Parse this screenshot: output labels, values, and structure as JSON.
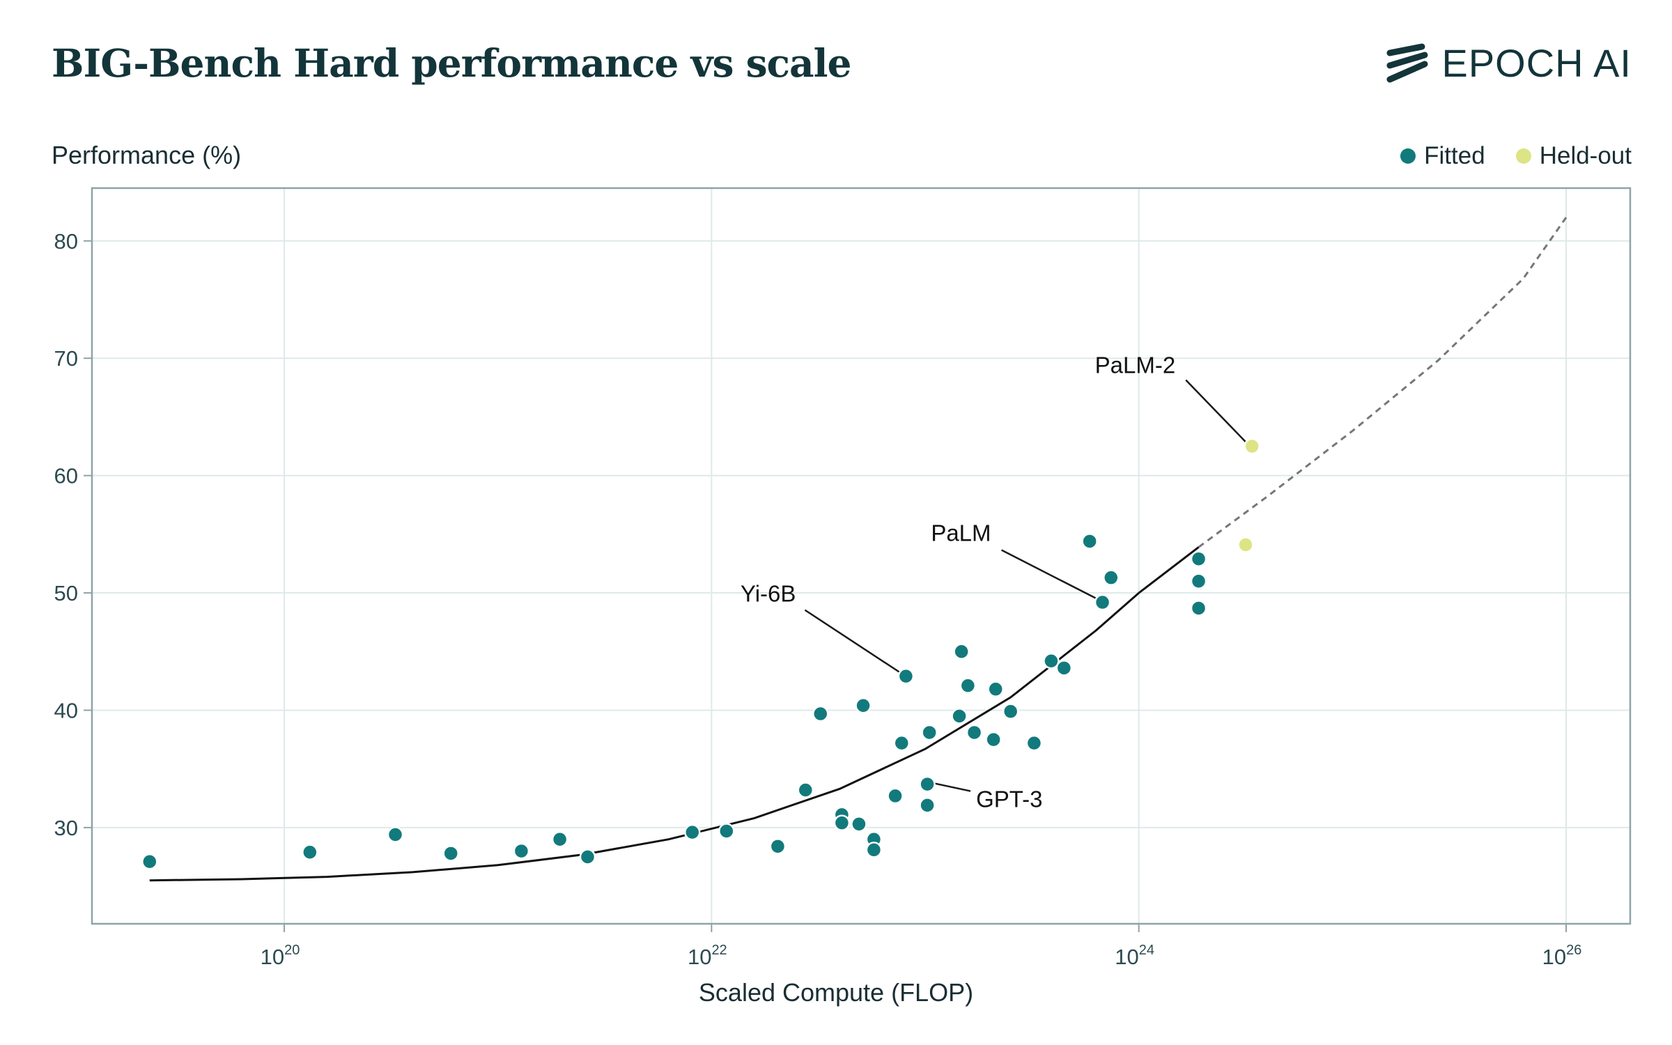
{
  "header": {
    "title": "BIG-Bench Hard performance vs scale",
    "logo_text": "EPOCH AI"
  },
  "legend": {
    "fitted_label": "Fitted",
    "heldout_label": "Held-out"
  },
  "colors": {
    "fitted": "#127a7c",
    "heldout": "#dde485",
    "axis": "#8fa3a8",
    "grid": "#dfe9ea",
    "curve": "#111111",
    "projection": "#777777"
  },
  "chart_data": {
    "type": "scatter",
    "xlabel": "Scaled Compute (FLOP)",
    "ylabel": "Performance (%)",
    "xscale": "log",
    "xlim_log10": [
      19.1,
      26.3
    ],
    "ylim": [
      21.8,
      84.5
    ],
    "x_ticks": [
      {
        "base": "10",
        "exp": "20",
        "log10": 20
      },
      {
        "base": "10",
        "exp": "22",
        "log10": 22
      },
      {
        "base": "10",
        "exp": "24",
        "log10": 24
      },
      {
        "base": "10",
        "exp": "26",
        "log10": 26
      }
    ],
    "y_ticks": [
      30,
      40,
      50,
      60,
      70,
      80
    ],
    "grid": true,
    "legend_position": "top-right",
    "series": [
      {
        "name": "Fitted",
        "points_log10x_y": [
          [
            19.37,
            27.1
          ],
          [
            20.12,
            27.9
          ],
          [
            20.52,
            29.4
          ],
          [
            20.78,
            27.8
          ],
          [
            21.11,
            28.0
          ],
          [
            21.29,
            29.0
          ],
          [
            21.42,
            27.5
          ],
          [
            21.91,
            29.6
          ],
          [
            22.07,
            29.7
          ],
          [
            22.31,
            28.4
          ],
          [
            22.44,
            33.2
          ],
          [
            22.51,
            39.7
          ],
          [
            22.61,
            31.1
          ],
          [
            22.61,
            30.4
          ],
          [
            22.69,
            30.3
          ],
          [
            22.71,
            40.4
          ],
          [
            22.76,
            29.0
          ],
          [
            22.76,
            28.1
          ],
          [
            22.86,
            32.7
          ],
          [
            22.89,
            37.2
          ],
          [
            22.91,
            42.9
          ],
          [
            23.01,
            33.7
          ],
          [
            23.01,
            31.9
          ],
          [
            23.02,
            38.1
          ],
          [
            23.16,
            39.5
          ],
          [
            23.17,
            45.0
          ],
          [
            23.2,
            42.1
          ],
          [
            23.23,
            38.1
          ],
          [
            23.32,
            37.5
          ],
          [
            23.33,
            41.8
          ],
          [
            23.4,
            39.9
          ],
          [
            23.51,
            37.2
          ],
          [
            23.59,
            44.2
          ],
          [
            23.65,
            43.6
          ],
          [
            23.77,
            54.4
          ],
          [
            23.83,
            49.2
          ],
          [
            23.87,
            51.3
          ],
          [
            24.28,
            52.9
          ],
          [
            24.28,
            51.0
          ],
          [
            24.28,
            48.7
          ]
        ]
      },
      {
        "name": "Held-out",
        "points_log10x_y": [
          [
            24.5,
            54.1
          ],
          [
            24.53,
            62.5
          ]
        ]
      }
    ],
    "fit_curve_log10x_y": [
      [
        19.37,
        25.5
      ],
      [
        19.8,
        25.6
      ],
      [
        20.2,
        25.8
      ],
      [
        20.6,
        26.2
      ],
      [
        21.0,
        26.8
      ],
      [
        21.4,
        27.7
      ],
      [
        21.8,
        29.0
      ],
      [
        22.2,
        30.8
      ],
      [
        22.6,
        33.3
      ],
      [
        23.0,
        36.7
      ],
      [
        23.4,
        41.1
      ],
      [
        23.8,
        46.8
      ],
      [
        24.0,
        50.0
      ],
      [
        24.28,
        53.9
      ]
    ],
    "projection_log10x_y": [
      [
        24.28,
        53.9
      ],
      [
        24.6,
        58.2
      ],
      [
        25.0,
        63.8
      ],
      [
        25.4,
        69.8
      ],
      [
        25.8,
        76.8
      ],
      [
        26.0,
        82.0
      ]
    ],
    "annotations": [
      {
        "text": "PaLM-2",
        "point_log10x_y": [
          24.53,
          62.5
        ]
      },
      {
        "text": "PaLM",
        "point_log10x_y": [
          23.83,
          49.2
        ]
      },
      {
        "text": "Yi-6B",
        "point_log10x_y": [
          22.91,
          42.9
        ]
      },
      {
        "text": "GPT-3",
        "point_log10x_y": [
          23.01,
          33.7
        ]
      }
    ]
  }
}
